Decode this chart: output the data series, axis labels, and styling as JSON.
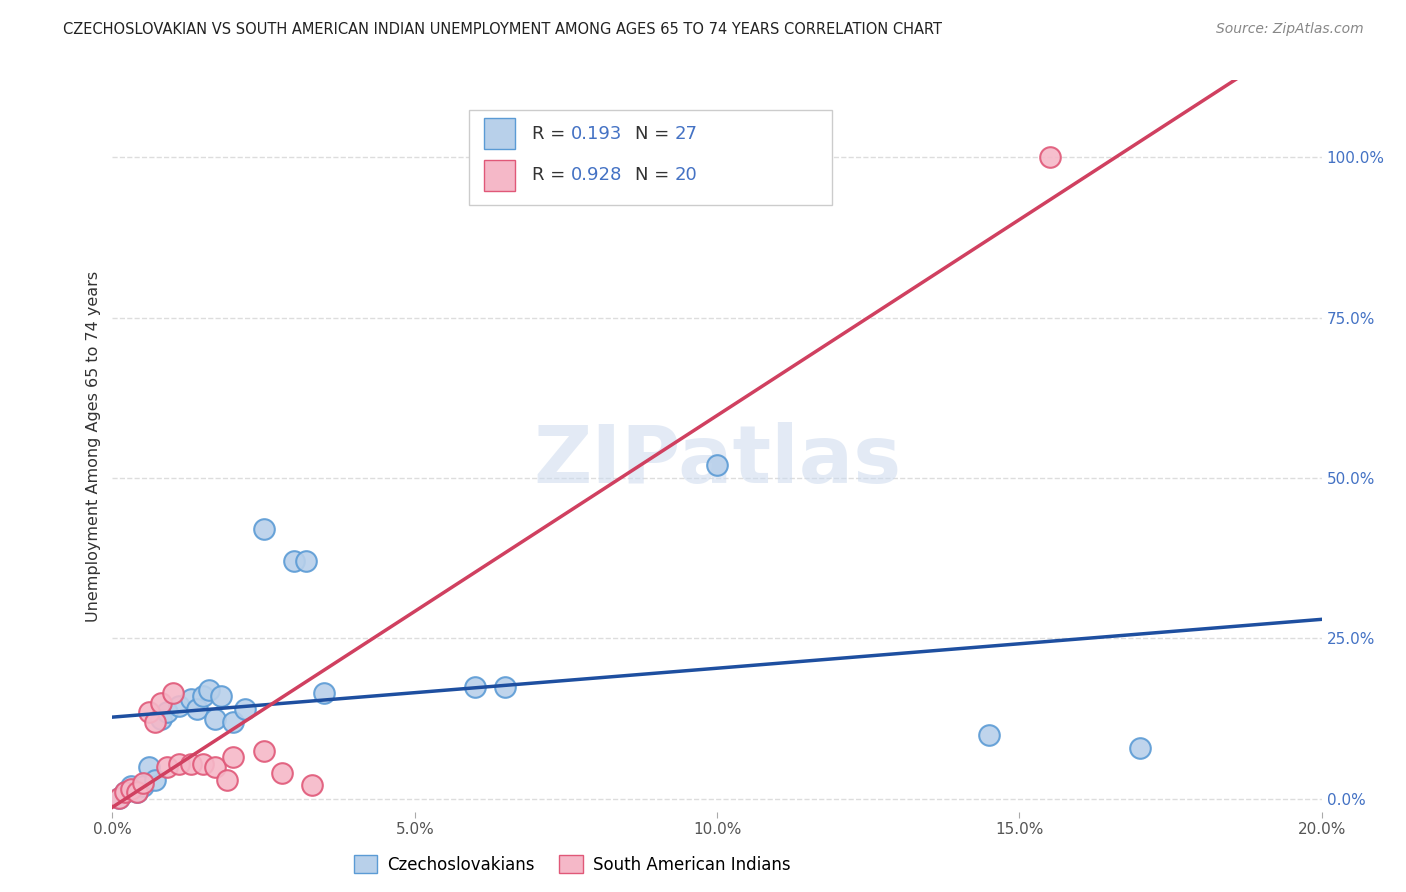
{
  "title": "CZECHOSLOVAKIAN VS SOUTH AMERICAN INDIAN UNEMPLOYMENT AMONG AGES 65 TO 74 YEARS CORRELATION CHART",
  "source": "Source: ZipAtlas.com",
  "ylabel": "Unemployment Among Ages 65 to 74 years",
  "xlim": [
    0.0,
    0.2
  ],
  "ylim": [
    -0.02,
    1.12
  ],
  "xticks": [
    0.0,
    0.05,
    0.1,
    0.15,
    0.2
  ],
  "xticklabels": [
    "0.0%",
    "5.0%",
    "10.0%",
    "15.0%",
    "20.0%"
  ],
  "yticks_right": [
    0.0,
    0.25,
    0.5,
    0.75,
    1.0
  ],
  "yticklabels_right": [
    "0.0%",
    "25.0%",
    "50.0%",
    "75.0%",
    "100.0%"
  ],
  "czech_fill": "#b8d0ea",
  "czech_edge": "#5b9bd5",
  "sam_fill": "#f5b8c8",
  "sam_edge": "#e05878",
  "line_blue": "#1e4fa0",
  "line_pink": "#d04060",
  "R_czech": 0.193,
  "N_czech": 27,
  "R_sam": 0.928,
  "N_sam": 20,
  "czech_x": [
    0.001,
    0.002,
    0.003,
    0.004,
    0.005,
    0.006,
    0.007,
    0.008,
    0.009,
    0.011,
    0.013,
    0.014,
    0.015,
    0.016,
    0.017,
    0.018,
    0.02,
    0.022,
    0.025,
    0.03,
    0.032,
    0.035,
    0.06,
    0.065,
    0.1,
    0.145,
    0.17
  ],
  "czech_y": [
    0.001,
    0.01,
    0.02,
    0.01,
    0.02,
    0.05,
    0.03,
    0.125,
    0.135,
    0.145,
    0.155,
    0.14,
    0.16,
    0.17,
    0.125,
    0.16,
    0.12,
    0.14,
    0.42,
    0.37,
    0.37,
    0.165,
    0.175,
    0.175,
    0.52,
    0.1,
    0.08
  ],
  "sam_x": [
    0.001,
    0.002,
    0.003,
    0.004,
    0.005,
    0.006,
    0.007,
    0.008,
    0.009,
    0.01,
    0.011,
    0.013,
    0.015,
    0.017,
    0.019,
    0.02,
    0.025,
    0.028,
    0.033,
    0.155
  ],
  "sam_y": [
    0.001,
    0.01,
    0.015,
    0.01,
    0.025,
    0.135,
    0.12,
    0.15,
    0.05,
    0.165,
    0.055,
    0.055,
    0.055,
    0.05,
    0.03,
    0.065,
    0.075,
    0.04,
    0.022,
    1.0
  ],
  "watermark": "ZIPatlas",
  "bg": "#ffffff",
  "grid_color": "#dddddd",
  "rvalue_color": "#4472c4"
}
